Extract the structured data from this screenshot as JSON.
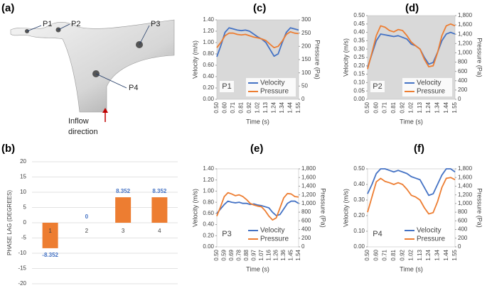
{
  "diagram": {
    "panel": "(a)",
    "points": [
      "P1",
      "P2",
      "P3",
      "P4"
    ],
    "caption": [
      "Inflow",
      "direction"
    ]
  },
  "chart_data": [
    {
      "type": "bar",
      "panel": "(b)",
      "y_label": "PHASE LAG (DEGREES)",
      "categories": [
        "1",
        "2",
        "3",
        "4"
      ],
      "values": [
        -8.352,
        0,
        8.352,
        8.352
      ],
      "color": "#ed7d31",
      "label_color": "#4472c4",
      "ylim": [
        -20,
        20
      ],
      "yticks": [
        -20,
        -15,
        -10,
        -5,
        0,
        5,
        10,
        15,
        20
      ],
      "grid": true
    },
    {
      "type": "line",
      "panel": "(c)",
      "annotation": "P1",
      "x_label": "Time (s)",
      "y_label": "Velocity (m/s)",
      "y2_label": "Pressure (Pa)",
      "background": "#d9d9d9",
      "categories": [
        "0.50",
        null,
        "0.60",
        null,
        "0.71",
        null,
        "0.81",
        null,
        "0.92",
        null,
        "1.02",
        null,
        "1.13",
        null,
        "1.24",
        null,
        "1.34",
        null,
        "1.44",
        null,
        "1.55"
      ],
      "ylim": [
        0,
        1.4
      ],
      "yticks": [
        {
          "value": 0,
          "label": "0.00"
        },
        {
          "value": 0.2,
          "label": "0.20"
        },
        {
          "value": 0.4,
          "label": "0.40"
        },
        {
          "value": 0.6,
          "label": "0.60"
        },
        {
          "value": 0.8,
          "label": "0.80"
        },
        {
          "value": 1,
          "label": "1.00"
        },
        {
          "value": 1.2,
          "label": "1.20"
        },
        {
          "value": 1.4,
          "label": "1.40"
        }
      ],
      "y2lim": [
        0,
        300
      ],
      "y2ticks": [
        0,
        50,
        100,
        150,
        200,
        250,
        300
      ],
      "series": [
        {
          "name": "Velocity",
          "color": "#4472c4",
          "values": [
            0.75,
            0.95,
            1.18,
            1.26,
            1.24,
            1.22,
            1.21,
            1.22,
            1.2,
            1.15,
            1.1,
            1.06,
            1.0,
            0.88,
            0.76,
            0.8,
            1.0,
            1.18,
            1.26,
            1.24,
            1.22
          ]
        },
        {
          "name": "Pressure",
          "color": "#ed7d31",
          "axis": "y2",
          "values": [
            195,
            215,
            240,
            250,
            250,
            245,
            243,
            245,
            240,
            235,
            232,
            228,
            222,
            208,
            195,
            200,
            220,
            245,
            255,
            250,
            248
          ]
        }
      ]
    },
    {
      "type": "line",
      "panel": "(d)",
      "annotation": "P2",
      "x_label": "Time (s)",
      "y_label": "Velocity (m/s)",
      "y2_label": "Pressure (Pa)",
      "background": "#d9d9d9",
      "categories": [
        "0.50",
        null,
        "0.60",
        null,
        "0.71",
        null,
        "0.81",
        null,
        "0.92",
        null,
        "1.02",
        null,
        "1.13",
        null,
        "1.24",
        null,
        "1.34",
        null,
        "1.44",
        null,
        "1.55"
      ],
      "ylim": [
        0,
        0.5
      ],
      "yticks": [
        {
          "value": 0,
          "label": "0.00"
        },
        {
          "value": 0.05,
          "label": "0.05"
        },
        {
          "value": 0.1,
          "label": "0.10"
        },
        {
          "value": 0.15,
          "label": "0.15"
        },
        {
          "value": 0.2,
          "label": "0.20"
        },
        {
          "value": 0.25,
          "label": "0.25"
        },
        {
          "value": 0.3,
          "label": "0.30"
        },
        {
          "value": 0.35,
          "label": "0.35"
        },
        {
          "value": 0.4,
          "label": "0.40"
        },
        {
          "value": 0.45,
          "label": "0.45"
        },
        {
          "value": 0.5,
          "label": "0.50"
        }
      ],
      "y2lim": [
        0,
        1800
      ],
      "y2ticks": [
        0,
        200,
        400,
        600,
        800,
        {
          "value": 1000,
          "label": "1,000"
        },
        {
          "value": 1200,
          "label": "1,200"
        },
        {
          "value": 1400,
          "label": "1,400"
        },
        {
          "value": 1600,
          "label": "1,600"
        },
        {
          "value": 1800,
          "label": "1,800"
        }
      ],
      "series": [
        {
          "name": "Velocity",
          "color": "#4472c4",
          "values": [
            0.19,
            0.27,
            0.35,
            0.39,
            0.385,
            0.38,
            0.375,
            0.38,
            0.37,
            0.36,
            0.33,
            0.32,
            0.3,
            0.25,
            0.21,
            0.22,
            0.28,
            0.35,
            0.39,
            0.4,
            0.39
          ]
        },
        {
          "name": "Pressure",
          "color": "#ed7d31",
          "axis": "y2",
          "values": [
            650,
            1000,
            1370,
            1580,
            1550,
            1480,
            1450,
            1500,
            1480,
            1370,
            1230,
            1150,
            1080,
            860,
            700,
            720,
            1000,
            1370,
            1580,
            1620,
            1580
          ]
        }
      ]
    },
    {
      "type": "line",
      "panel": "(e)",
      "annotation": "P3",
      "x_label": "Time (s)",
      "y_label": "Velocity (m/s)",
      "y2_label": "Pressure (Pa)",
      "background": "#ffffff",
      "categories": [
        "0.50",
        null,
        "0.59",
        null,
        "0.69",
        null,
        "0.78",
        null,
        "0.88",
        null,
        "0.97",
        null,
        "1.07",
        null,
        "1.16",
        null,
        "1.26",
        null,
        "1.36",
        null,
        "1.45",
        null,
        "1.54"
      ],
      "ylim": [
        0,
        1.4
      ],
      "yticks": [
        {
          "value": 0,
          "label": "0.00"
        },
        {
          "value": 0.2,
          "label": "0.20"
        },
        {
          "value": 0.4,
          "label": "0.40"
        },
        {
          "value": 0.6,
          "label": "0.60"
        },
        {
          "value": 0.8,
          "label": "0.80"
        },
        {
          "value": 1,
          "label": "1.00"
        },
        {
          "value": 1.2,
          "label": "1.20"
        },
        {
          "value": 1.4,
          "label": "1.40"
        }
      ],
      "y2lim": [
        0,
        1800
      ],
      "y2ticks": [
        0,
        200,
        400,
        600,
        800,
        {
          "value": 1000,
          "label": "1,000"
        },
        {
          "value": 1200,
          "label": "1,200"
        },
        {
          "value": 1400,
          "label": "1,400"
        },
        {
          "value": 1600,
          "label": "1,600"
        },
        {
          "value": 1800,
          "label": "1,800"
        }
      ],
      "series": [
        {
          "name": "Velocity",
          "color": "#4472c4",
          "values": [
            0.6,
            0.68,
            0.76,
            0.82,
            0.8,
            0.79,
            0.8,
            0.78,
            0.78,
            0.76,
            0.77,
            0.75,
            0.74,
            0.72,
            0.7,
            0.62,
            0.56,
            0.58,
            0.68,
            0.78,
            0.82,
            0.82,
            0.78
          ]
        },
        {
          "name": "Pressure",
          "color": "#ed7d31",
          "axis": "y2",
          "values": [
            710,
            925,
            1160,
            1250,
            1220,
            1180,
            1200,
            1160,
            1090,
            1000,
            965,
            940,
            925,
            835,
            710,
            620,
            670,
            900,
            1130,
            1230,
            1220,
            1160,
            1150
          ]
        }
      ]
    },
    {
      "type": "line",
      "panel": "(f)",
      "annotation": "P4",
      "x_label": "Time (s)",
      "y_label": "Velocity (m/s)",
      "y2_label": "Pressure (Pa)",
      "background": "#ffffff",
      "categories": [
        "0.50",
        null,
        "0.60",
        null,
        "0.71",
        null,
        "0.81",
        null,
        "0.92",
        null,
        "1.02",
        null,
        "1.13",
        null,
        "1.24",
        null,
        "1.34",
        null,
        "1.44",
        null,
        "1.55"
      ],
      "ylim": [
        0,
        0.5
      ],
      "yticks": [
        {
          "value": 0,
          "label": "0.00"
        },
        {
          "value": 0.1,
          "label": "0.10"
        },
        {
          "value": 0.2,
          "label": "0.20"
        },
        {
          "value": 0.3,
          "label": "0.30"
        },
        {
          "value": 0.4,
          "label": "0.40"
        },
        {
          "value": 0.5,
          "label": "0.50"
        }
      ],
      "y2lim": [
        0,
        1800
      ],
      "y2ticks": [
        0,
        200,
        400,
        600,
        800,
        {
          "value": 1000,
          "label": "1,000"
        },
        {
          "value": 1200,
          "label": "1,200"
        },
        {
          "value": 1400,
          "label": "1,400"
        },
        {
          "value": 1600,
          "label": "1,600"
        },
        {
          "value": 1800,
          "label": "1,800"
        }
      ],
      "series": [
        {
          "name": "Velocity",
          "color": "#4472c4",
          "values": [
            0.34,
            0.4,
            0.47,
            0.5,
            0.5,
            0.49,
            0.48,
            0.49,
            0.48,
            0.47,
            0.45,
            0.44,
            0.43,
            0.38,
            0.33,
            0.34,
            0.4,
            0.46,
            0.5,
            0.5,
            0.48
          ]
        },
        {
          "name": "Pressure",
          "color": "#ed7d31",
          "axis": "y2",
          "values": [
            800,
            1150,
            1500,
            1580,
            1510,
            1480,
            1440,
            1480,
            1440,
            1330,
            1190,
            1150,
            1080,
            900,
            760,
            790,
            1040,
            1370,
            1580,
            1600,
            1550
          ]
        }
      ]
    }
  ]
}
